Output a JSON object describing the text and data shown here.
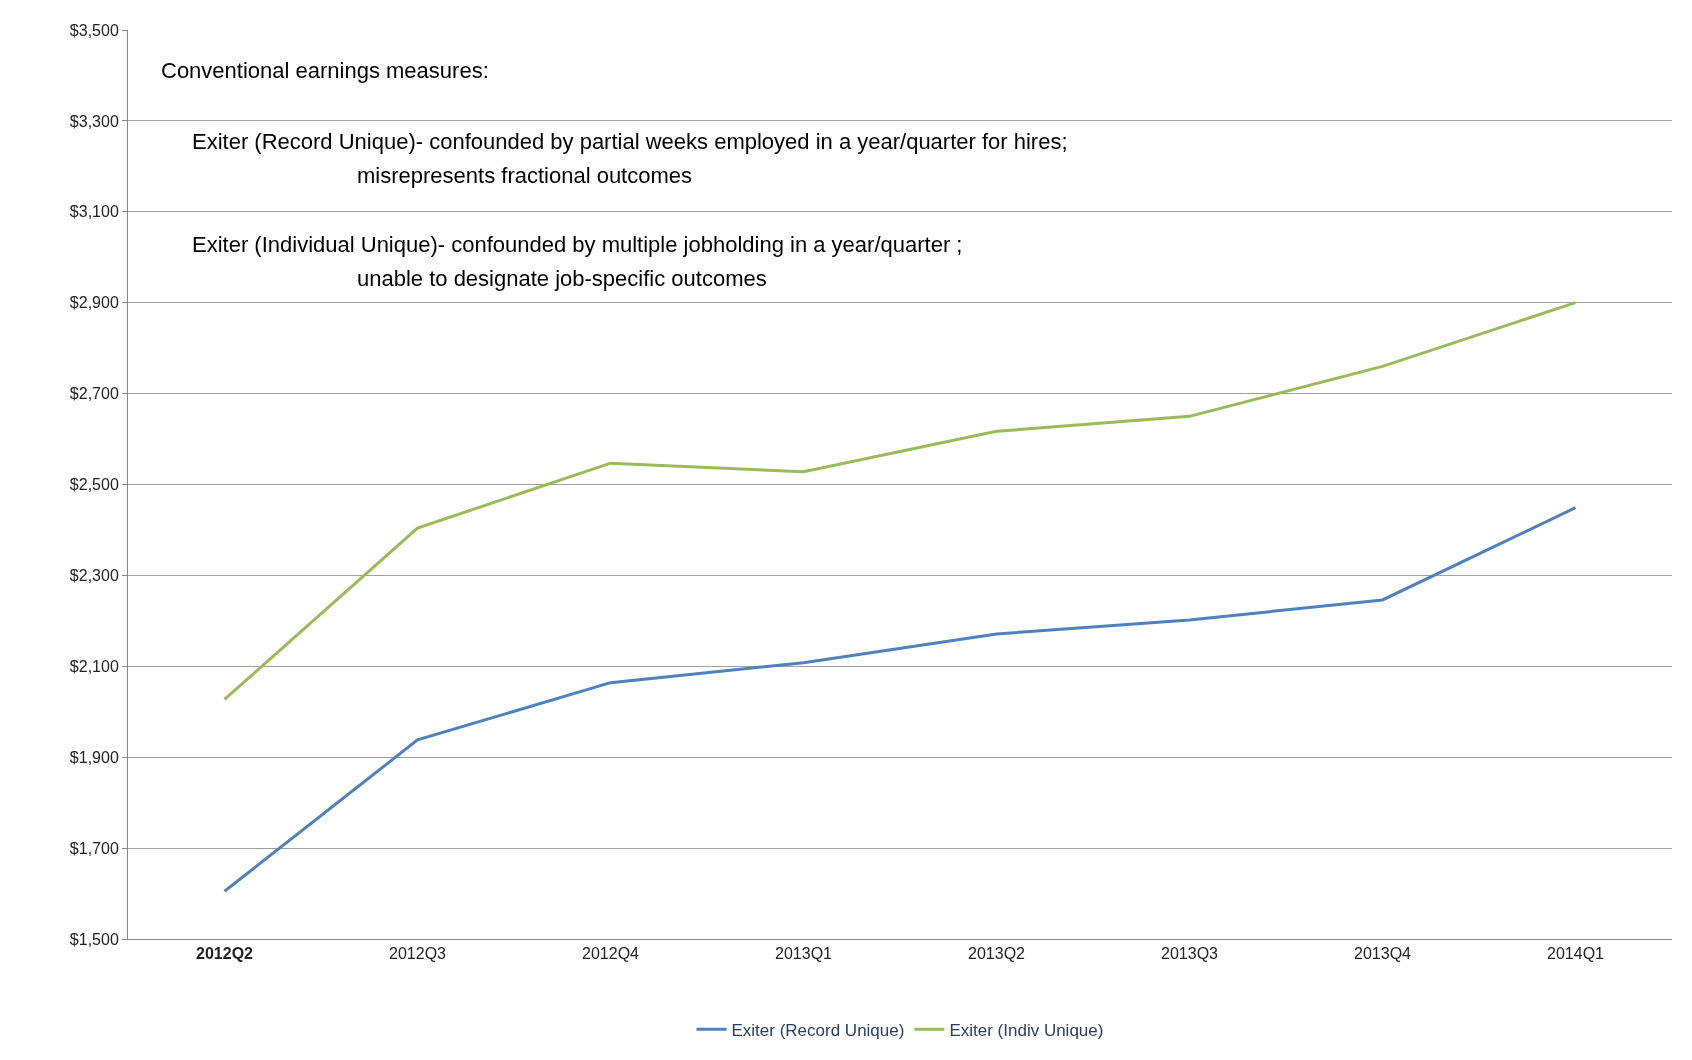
{
  "chart_data": {
    "type": "line",
    "categories": [
      "2012Q2",
      "2012Q3",
      "2012Q4",
      "2013Q1",
      "2013Q2",
      "2013Q3",
      "2013Q4",
      "2014Q1"
    ],
    "series": [
      {
        "name": "Exiter (Record Unique)",
        "color": "#4f81bd",
        "values": [
          1605,
          1938,
          2064,
          2108,
          2171,
          2202,
          2246,
          2449
        ]
      },
      {
        "name": "Exiter (Indiv Unique)",
        "color": "#9bbb59",
        "values": [
          2027,
          2404,
          2547,
          2528,
          2617,
          2650,
          2760,
          2900
        ]
      }
    ],
    "ylim": [
      1500,
      3500
    ],
    "yticks": [
      {
        "value": 1500,
        "label": "$1,500"
      },
      {
        "value": 1700,
        "label": "$1,700"
      },
      {
        "value": 1900,
        "label": "$1,900"
      },
      {
        "value": 2100,
        "label": "$2,100"
      },
      {
        "value": 2300,
        "label": "$2,300"
      },
      {
        "value": 2500,
        "label": "$2,500"
      },
      {
        "value": 2700,
        "label": "$2,700"
      },
      {
        "value": 2900,
        "label": "$2,900"
      },
      {
        "value": 3100,
        "label": "$3,100"
      },
      {
        "value": 3300,
        "label": "$3,300"
      },
      {
        "value": 3500,
        "label": "$3,500"
      }
    ],
    "annotations": [
      "Conventional earnings measures:",
      "Exiter (Record Unique)- confounded by partial weeks employed in a year/quarter for hires;",
      "misrepresents fractional outcomes",
      "Exiter (Individual Unique)- confounded by multiple jobholding in a year/quarter ;",
      "unable to designate job-specific outcomes"
    ],
    "grid": "y",
    "legend": "bottom",
    "marker": "none",
    "line_style": "solid"
  }
}
